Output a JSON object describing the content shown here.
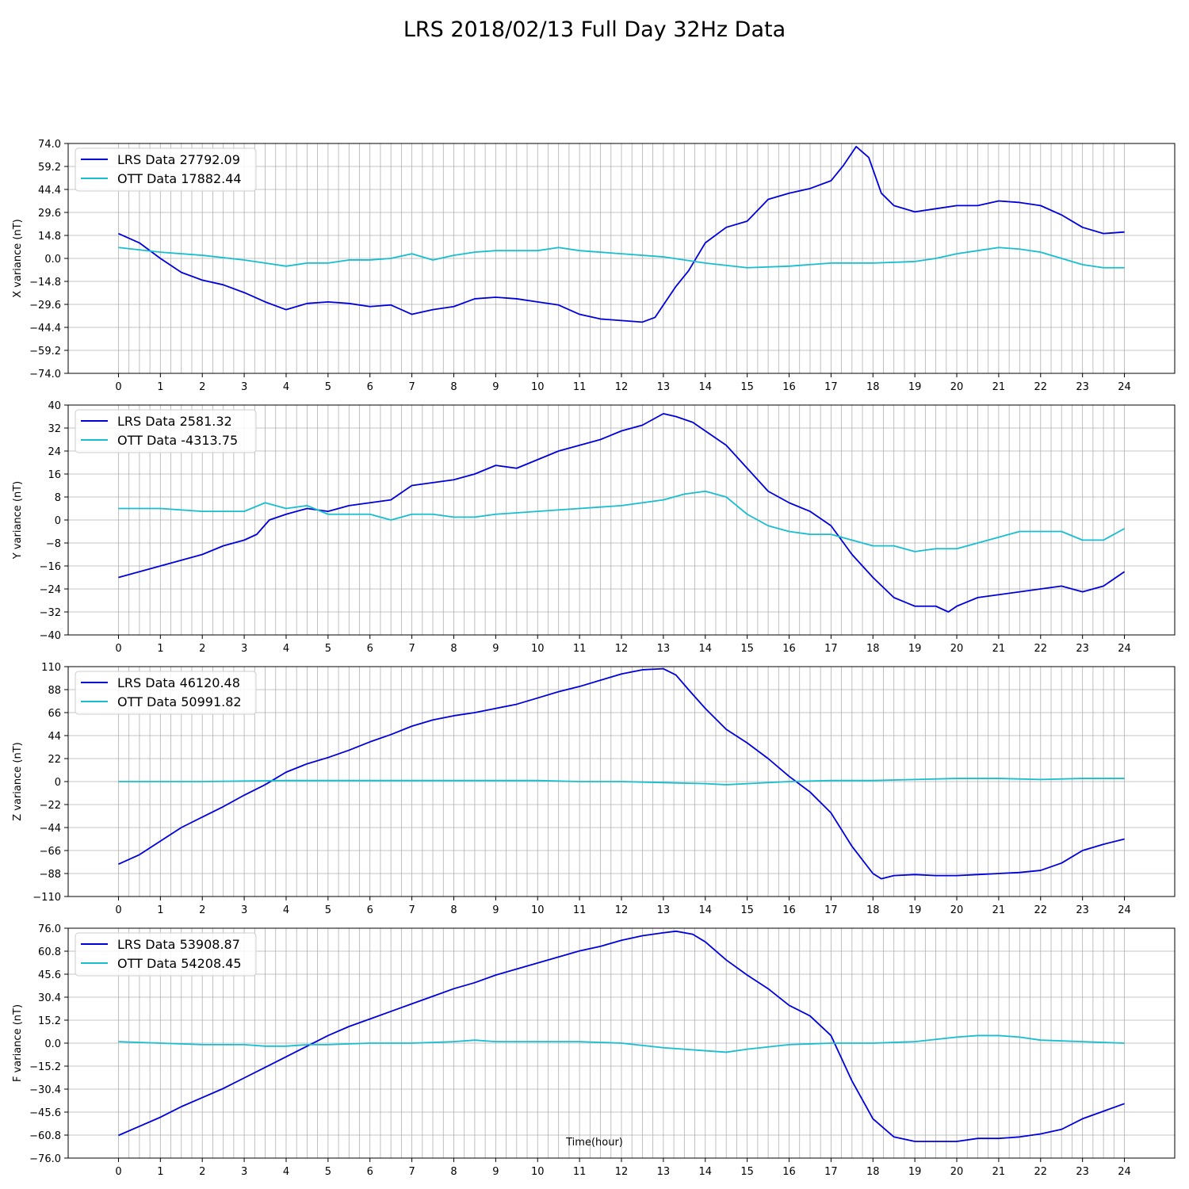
{
  "title": "LRS 2018/02/13 Full Day 32Hz Data",
  "xlabel": "Time(hour)",
  "colors": {
    "lrs": "#0000dd",
    "ott": "#17becf",
    "grid": "#b0b0b0"
  },
  "chart_data": [
    {
      "type": "line",
      "ylabel": "X variance (nT)",
      "xlim": [
        -1.2,
        25.2
      ],
      "ylim": [
        -74,
        74
      ],
      "xticks": [
        "0",
        "1",
        "2",
        "3",
        "4",
        "5",
        "6",
        "7",
        "8",
        "9",
        "10",
        "11",
        "12",
        "13",
        "14",
        "15",
        "16",
        "17",
        "18",
        "19",
        "20",
        "21",
        "22",
        "23",
        "24"
      ],
      "yticks": [
        "74.0",
        "59.2",
        "44.4",
        "29.6",
        "14.8",
        "0.0",
        "−14.8",
        "−29.6",
        "−44.4",
        "−59.2",
        "−74.0"
      ],
      "legend_position": "upper-left",
      "series": [
        {
          "name": "LRS Data 27792.09",
          "x": [
            0,
            0.5,
            1,
            1.5,
            2,
            2.5,
            3,
            3.5,
            4,
            4.5,
            5,
            5.5,
            6,
            6.5,
            7,
            7.5,
            8,
            8.5,
            9,
            9.5,
            10,
            10.5,
            11,
            11.5,
            12,
            12.5,
            12.8,
            13,
            13.3,
            13.6,
            14,
            14.5,
            15,
            15.5,
            16,
            16.5,
            17,
            17.3,
            17.6,
            17.9,
            18.2,
            18.5,
            19,
            19.5,
            20,
            20.5,
            21,
            21.5,
            22,
            22.5,
            23,
            23.5,
            24
          ],
          "values": [
            16,
            10,
            0,
            -9,
            -14,
            -17,
            -22,
            -28,
            -33,
            -29,
            -28,
            -29,
            -31,
            -30,
            -36,
            -33,
            -31,
            -26,
            -25,
            -26,
            -28,
            -30,
            -36,
            -39,
            -40,
            -41,
            -38,
            -30,
            -18,
            -8,
            10,
            20,
            24,
            38,
            42,
            45,
            50,
            60,
            72,
            65,
            42,
            34,
            30,
            32,
            34,
            34,
            37,
            36,
            34,
            28,
            20,
            16,
            17
          ]
        },
        {
          "name": "OTT Data 17882.44",
          "x": [
            0,
            1,
            2,
            3,
            3.5,
            4,
            4.5,
            5,
            5.5,
            6,
            6.5,
            7,
            7.5,
            8,
            8.5,
            9,
            10,
            10.5,
            11,
            12,
            13,
            14,
            15,
            16,
            17,
            18,
            19,
            19.5,
            20,
            20.5,
            21,
            21.5,
            22,
            22.5,
            23,
            23.5,
            24
          ],
          "values": [
            7,
            4,
            2,
            -1,
            -3,
            -5,
            -3,
            -3,
            -1,
            -1,
            0,
            3,
            -1,
            2,
            4,
            5,
            5,
            7,
            5,
            3,
            1,
            -3,
            -6,
            -5,
            -3,
            -3,
            -2,
            0,
            3,
            5,
            7,
            6,
            4,
            0,
            -4,
            -6,
            -6
          ]
        }
      ]
    },
    {
      "type": "line",
      "ylabel": "Y variance (nT)",
      "xlim": [
        -1.2,
        25.2
      ],
      "ylim": [
        -40,
        40
      ],
      "xticks": [
        "0",
        "1",
        "2",
        "3",
        "4",
        "5",
        "6",
        "7",
        "8",
        "9",
        "10",
        "11",
        "12",
        "13",
        "14",
        "15",
        "16",
        "17",
        "18",
        "19",
        "20",
        "21",
        "22",
        "23",
        "24"
      ],
      "yticks": [
        "40",
        "32",
        "24",
        "16",
        "8",
        "0",
        "−8",
        "−16",
        "−24",
        "−32",
        "−40"
      ],
      "legend_position": "upper-left",
      "series": [
        {
          "name": "LRS Data 2581.32",
          "x": [
            0,
            0.5,
            1,
            1.5,
            2,
            2.5,
            3,
            3.3,
            3.6,
            4,
            4.5,
            5,
            5.5,
            6,
            6.5,
            7,
            7.5,
            8,
            8.5,
            9,
            9.5,
            10,
            10.5,
            11,
            11.5,
            12,
            12.5,
            13,
            13.3,
            13.7,
            14,
            14.5,
            15,
            15.5,
            16,
            16.5,
            17,
            17.5,
            18,
            18.5,
            19,
            19.5,
            19.8,
            20,
            20.5,
            21,
            21.5,
            22,
            22.5,
            23,
            23.5,
            24
          ],
          "values": [
            -20,
            -18,
            -16,
            -14,
            -12,
            -9,
            -7,
            -5,
            0,
            2,
            4,
            3,
            5,
            6,
            7,
            12,
            13,
            14,
            16,
            19,
            18,
            21,
            24,
            26,
            28,
            31,
            33,
            37,
            36,
            34,
            31,
            26,
            18,
            10,
            6,
            3,
            -2,
            -12,
            -20,
            -27,
            -30,
            -30,
            -32,
            -30,
            -27,
            -26,
            -25,
            -24,
            -23,
            -25,
            -23,
            -18
          ]
        },
        {
          "name": "OTT Data -4313.75",
          "x": [
            0,
            1,
            2,
            3,
            3.5,
            4,
            4.5,
            5,
            5.5,
            6,
            6.5,
            7,
            7.5,
            8,
            8.5,
            9,
            10,
            11,
            12,
            12.5,
            13,
            13.5,
            14,
            14.5,
            15,
            15.5,
            16,
            16.5,
            17,
            17.5,
            18,
            18.5,
            19,
            19.5,
            20,
            20.5,
            21,
            21.5,
            22,
            22.5,
            23,
            23.5,
            24
          ],
          "values": [
            4,
            4,
            3,
            3,
            6,
            4,
            5,
            2,
            2,
            2,
            0,
            2,
            2,
            1,
            1,
            2,
            3,
            4,
            5,
            6,
            7,
            9,
            10,
            8,
            2,
            -2,
            -4,
            -5,
            -5,
            -7,
            -9,
            -9,
            -11,
            -10,
            -10,
            -8,
            -6,
            -4,
            -4,
            -4,
            -7,
            -7,
            -3
          ]
        }
      ]
    },
    {
      "type": "line",
      "ylabel": "Z variance (nT)",
      "xlim": [
        -1.2,
        25.2
      ],
      "ylim": [
        -110,
        110
      ],
      "xticks": [
        "0",
        "1",
        "2",
        "3",
        "4",
        "5",
        "6",
        "7",
        "8",
        "9",
        "10",
        "11",
        "12",
        "13",
        "14",
        "15",
        "16",
        "17",
        "18",
        "19",
        "20",
        "21",
        "22",
        "23",
        "24"
      ],
      "yticks": [
        "110",
        "88",
        "66",
        "44",
        "22",
        "0",
        "−22",
        "−44",
        "−66",
        "−88",
        "−110"
      ],
      "legend_position": "upper-left",
      "series": [
        {
          "name": "LRS Data 46120.48",
          "x": [
            0,
            0.5,
            1,
            1.5,
            2,
            2.5,
            3,
            3.5,
            4,
            4.5,
            5,
            5.5,
            6,
            6.5,
            7,
            7.5,
            8,
            8.5,
            9,
            9.5,
            10,
            10.5,
            11,
            11.5,
            12,
            12.5,
            13,
            13.3,
            13.6,
            14,
            14.5,
            15,
            15.5,
            16,
            16.5,
            17,
            17.5,
            18,
            18.2,
            18.5,
            19,
            19.5,
            20,
            20.5,
            21,
            21.5,
            22,
            22.5,
            23,
            23.5,
            24
          ],
          "values": [
            -79,
            -70,
            -57,
            -44,
            -34,
            -24,
            -13,
            -3,
            9,
            17,
            23,
            30,
            38,
            45,
            53,
            59,
            63,
            66,
            70,
            74,
            80,
            86,
            91,
            97,
            103,
            107,
            108,
            102,
            88,
            70,
            50,
            37,
            22,
            5,
            -10,
            -30,
            -62,
            -88,
            -93,
            -90,
            -89,
            -90,
            -90,
            -89,
            -88,
            -87,
            -85,
            -78,
            -66,
            -60,
            -55
          ]
        },
        {
          "name": "OTT Data 50991.82",
          "x": [
            0,
            2,
            4,
            6,
            8,
            10,
            11,
            12,
            13,
            14,
            14.5,
            15,
            16,
            17,
            18,
            19,
            20,
            21,
            22,
            23,
            24
          ],
          "values": [
            0,
            0,
            1,
            1,
            1,
            1,
            0,
            0,
            -1,
            -2,
            -3,
            -2,
            0,
            1,
            1,
            2,
            3,
            3,
            2,
            3,
            3
          ]
        }
      ]
    },
    {
      "type": "line",
      "ylabel": "F variance (nT)",
      "xlim": [
        -1.2,
        25.2
      ],
      "ylim": [
        -76,
        76
      ],
      "xticks": [
        "0",
        "1",
        "2",
        "3",
        "4",
        "5",
        "6",
        "7",
        "8",
        "9",
        "10",
        "11",
        "12",
        "13",
        "14",
        "15",
        "16",
        "17",
        "18",
        "19",
        "20",
        "21",
        "22",
        "23",
        "24"
      ],
      "yticks": [
        "76.0",
        "60.8",
        "45.6",
        "30.4",
        "15.2",
        "0.0",
        "−15.2",
        "−30.4",
        "−45.6",
        "−60.8",
        "−76.0"
      ],
      "legend_position": "upper-left",
      "series": [
        {
          "name": "LRS Data 53908.87",
          "x": [
            0,
            0.5,
            1,
            1.5,
            2,
            2.5,
            3,
            3.5,
            4,
            4.5,
            5,
            5.5,
            6,
            6.5,
            7,
            7.5,
            8,
            8.5,
            9,
            9.5,
            10,
            10.5,
            11,
            11.5,
            12,
            12.5,
            13,
            13.3,
            13.7,
            14,
            14.5,
            15,
            15.5,
            16,
            16.5,
            17,
            17.5,
            18,
            18.5,
            19,
            19.5,
            20,
            20.5,
            21,
            21.5,
            22,
            22.5,
            23,
            23.5,
            24
          ],
          "values": [
            -61,
            -55,
            -49,
            -42,
            -36,
            -30,
            -23,
            -16,
            -9,
            -2,
            5,
            11,
            16,
            21,
            26,
            31,
            36,
            40,
            45,
            49,
            53,
            57,
            61,
            64,
            68,
            71,
            73,
            74,
            72,
            67,
            55,
            45,
            36,
            25,
            18,
            5,
            -25,
            -50,
            -62,
            -65,
            -65,
            -65,
            -63,
            -63,
            -62,
            -60,
            -57,
            -50,
            -45,
            -40
          ]
        },
        {
          "name": "OTT Data 54208.45",
          "x": [
            0,
            1,
            2,
            3,
            3.5,
            4,
            4.5,
            5,
            6,
            7,
            8,
            8.5,
            9,
            10,
            11,
            12,
            13,
            14,
            14.5,
            15,
            16,
            17,
            18,
            19,
            20,
            20.5,
            21,
            21.5,
            22,
            23,
            24
          ],
          "values": [
            1,
            0,
            -1,
            -1,
            -2,
            -2,
            -1,
            -1,
            0,
            0,
            1,
            2,
            1,
            1,
            1,
            0,
            -3,
            -5,
            -6,
            -4,
            -1,
            0,
            0,
            1,
            4,
            5,
            5,
            4,
            2,
            1,
            0
          ]
        }
      ]
    }
  ]
}
